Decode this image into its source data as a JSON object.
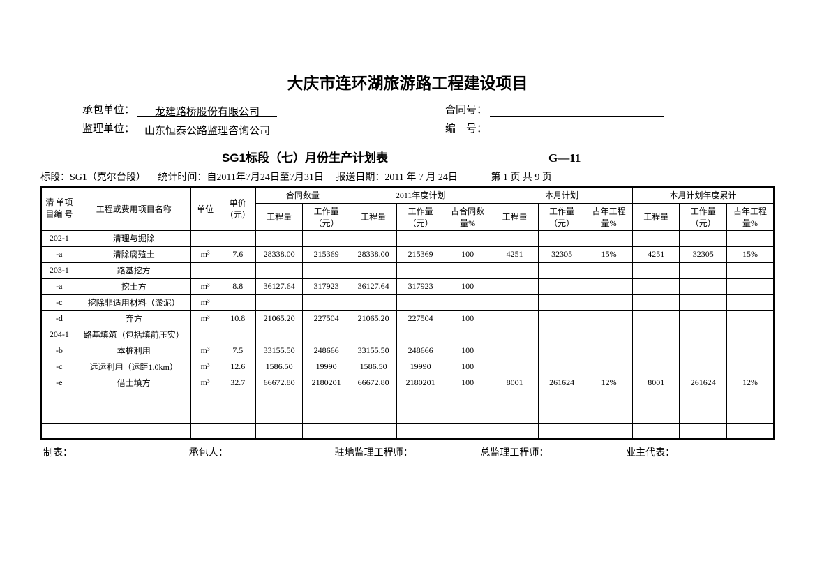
{
  "title": "大庆市连环湖旅游路工程建设项目",
  "info": {
    "contractor_label": "承包单位：",
    "contractor": "龙建路桥股份有限公司",
    "contract_no_label": "合同号：",
    "contract_no": "",
    "supervisor_label": "监理单位：",
    "supervisor": "山东恒泰公路监理咨询公司",
    "serial_label": "编　号：",
    "serial": ""
  },
  "sub_title": "SG1标段（七）月份生产计划表",
  "form_code": "G—11",
  "meta": {
    "section": "标段：SG1（克尔台段）",
    "stat_time": "统计时间：自2011年7月24日至7月31日",
    "report_date": "报送日期：2011 年 7 月 24日",
    "page": "第 1 页 共 9 页"
  },
  "headers": {
    "id": "清 单项 目编 号",
    "name": "工程或费用项目名称",
    "unit": "单位",
    "price": "单价（元）",
    "contract_qty": "合同数量",
    "year_plan": "2011年度计划",
    "month_plan": "本月计划",
    "month_cum": "本月计划年度累计",
    "qty": "工程量",
    "work": "工作量（元）",
    "pct_contract": "占合同数量%",
    "pct_year": "占年工程量%"
  },
  "rows": [
    {
      "id": "202-1",
      "name": "清理与掘除",
      "unit": "",
      "price": "",
      "c_qty": "",
      "c_work": "",
      "y_qty": "",
      "y_work": "",
      "y_pct": "",
      "m_qty": "",
      "m_work": "",
      "m_pct": "",
      "a_qty": "",
      "a_work": "",
      "a_pct": ""
    },
    {
      "id": "-a",
      "name": "清除腐殖土",
      "unit": "m³",
      "price": "7.6",
      "c_qty": "28338.00",
      "c_work": "215369",
      "y_qty": "28338.00",
      "y_work": "215369",
      "y_pct": "100",
      "m_qty": "4251",
      "m_work": "32305",
      "m_pct": "15%",
      "a_qty": "4251",
      "a_work": "32305",
      "a_pct": "15%"
    },
    {
      "id": "203-1",
      "name": "路基挖方",
      "unit": "",
      "price": "",
      "c_qty": "",
      "c_work": "",
      "y_qty": "",
      "y_work": "",
      "y_pct": "",
      "m_qty": "",
      "m_work": "",
      "m_pct": "",
      "a_qty": "",
      "a_work": "",
      "a_pct": ""
    },
    {
      "id": "-a",
      "name": "挖土方",
      "unit": "m³",
      "price": "8.8",
      "c_qty": "36127.64",
      "c_work": "317923",
      "y_qty": "36127.64",
      "y_work": "317923",
      "y_pct": "100",
      "m_qty": "",
      "m_work": "",
      "m_pct": "",
      "a_qty": "",
      "a_work": "",
      "a_pct": ""
    },
    {
      "id": "-c",
      "name": "挖除非适用材料（淤泥）",
      "unit": "m³",
      "price": "",
      "c_qty": "",
      "c_work": "",
      "y_qty": "",
      "y_work": "",
      "y_pct": "",
      "m_qty": "",
      "m_work": "",
      "m_pct": "",
      "a_qty": "",
      "a_work": "",
      "a_pct": ""
    },
    {
      "id": "-d",
      "name": "弃方",
      "unit": "m³",
      "price": "10.8",
      "c_qty": "21065.20",
      "c_work": "227504",
      "y_qty": "21065.20",
      "y_work": "227504",
      "y_pct": "100",
      "m_qty": "",
      "m_work": "",
      "m_pct": "",
      "a_qty": "",
      "a_work": "",
      "a_pct": ""
    },
    {
      "id": "204-1",
      "name": "路基填筑（包括填前压实）",
      "unit": "",
      "price": "",
      "c_qty": "",
      "c_work": "",
      "y_qty": "",
      "y_work": "",
      "y_pct": "",
      "m_qty": "",
      "m_work": "",
      "m_pct": "",
      "a_qty": "",
      "a_work": "",
      "a_pct": ""
    },
    {
      "id": "-b",
      "name": "本桩利用",
      "unit": "m³",
      "price": "7.5",
      "c_qty": "33155.50",
      "c_work": "248666",
      "y_qty": "33155.50",
      "y_work": "248666",
      "y_pct": "100",
      "m_qty": "",
      "m_work": "",
      "m_pct": "",
      "a_qty": "",
      "a_work": "",
      "a_pct": ""
    },
    {
      "id": "-c",
      "name": "远运利用（运距1.0km）",
      "unit": "m³",
      "price": "12.6",
      "c_qty": "1586.50",
      "c_work": "19990",
      "y_qty": "1586.50",
      "y_work": "19990",
      "y_pct": "100",
      "m_qty": "",
      "m_work": "",
      "m_pct": "",
      "a_qty": "",
      "a_work": "",
      "a_pct": ""
    },
    {
      "id": "-e",
      "name": "借土填方",
      "unit": "m³",
      "price": "32.7",
      "c_qty": "66672.80",
      "c_work": "2180201",
      "y_qty": "66672.80",
      "y_work": "2180201",
      "y_pct": "100",
      "m_qty": "8001",
      "m_work": "261624",
      "m_pct": "12%",
      "a_qty": "8001",
      "a_work": "261624",
      "a_pct": "12%"
    },
    {
      "id": "",
      "name": "",
      "unit": "",
      "price": "",
      "c_qty": "",
      "c_work": "",
      "y_qty": "",
      "y_work": "",
      "y_pct": "",
      "m_qty": "",
      "m_work": "",
      "m_pct": "",
      "a_qty": "",
      "a_work": "",
      "a_pct": ""
    },
    {
      "id": "",
      "name": "",
      "unit": "",
      "price": "",
      "c_qty": "",
      "c_work": "",
      "y_qty": "",
      "y_work": "",
      "y_pct": "",
      "m_qty": "",
      "m_work": "",
      "m_pct": "",
      "a_qty": "",
      "a_work": "",
      "a_pct": ""
    },
    {
      "id": "",
      "name": "",
      "unit": "",
      "price": "",
      "c_qty": "",
      "c_work": "",
      "y_qty": "",
      "y_work": "",
      "y_pct": "",
      "m_qty": "",
      "m_work": "",
      "m_pct": "",
      "a_qty": "",
      "a_work": "",
      "a_pct": ""
    }
  ],
  "footer": {
    "zhibiao": "制表：",
    "chengbaoren": "承包人：",
    "zhudi": "驻地监理工程师：",
    "zongjianli": "总监理工程师：",
    "yezhu": "业主代表："
  }
}
